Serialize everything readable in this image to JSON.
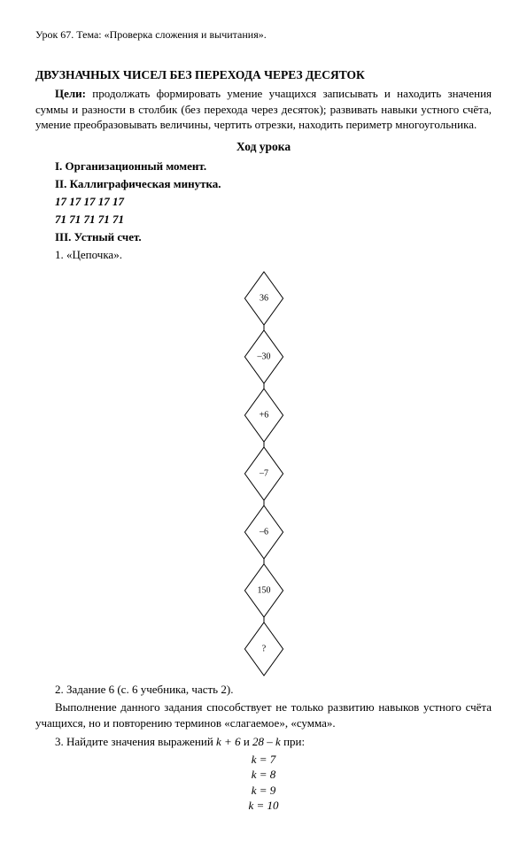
{
  "top_line": "Урок 67. Тема: «Проверка сложения и вычитания».",
  "heading": "ДВУЗНАЧНЫХ ЧИСЕЛ БЕЗ ПЕРЕХОДА ЧЕРЕЗ ДЕСЯТОК",
  "goals_label": "Цели:",
  "goals_text": "продолжать формировать умение учащихся записывать и находить значения суммы и разности в столбик (без перехода через десяток); развивать навыки устного счёта, умение преобразовывать величины, чертить отрезки, находить периметр многоугольника.",
  "flow_title": "Ход урока",
  "sec1": "I. Организационный момент.",
  "sec2": "II. Каллиграфическая минутка.",
  "line17": "17 17 17 17 17",
  "line71": "71 71 71 71 71",
  "sec3": "III. Устный счет.",
  "sec3_1": "1. «Цепочка».",
  "chain": {
    "values": [
      "36",
      "–30",
      "+6",
      "–7",
      "–6",
      "150",
      "?"
    ],
    "diamond_size": 30,
    "gap": 6,
    "stroke": "#000000",
    "stroke_width": 1,
    "font_size": 10,
    "font_family": "Times New Roman"
  },
  "task2_title": "2. Задание 6 (с. 6 учебника, часть 2).",
  "task2_text": "Выполнение данного задания способствует не только развитию навыков устного счёта учащихся, но и повторению терминов «слагаемое», «сумма».",
  "task3_title_a": "3. Найдите значения выражений ",
  "task3_expr1": "k + 6",
  "task3_mid": " и ",
  "task3_expr2": "28 – k",
  "task3_title_b": " при:",
  "k_values": [
    "k = 7",
    "k = 8",
    "k = 9",
    "k = 10"
  ]
}
